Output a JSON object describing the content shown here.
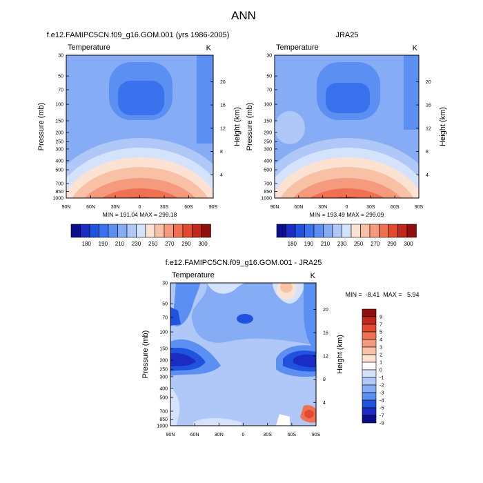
{
  "page_title": "ANN",
  "chart_data": [
    {
      "type": "heatmap",
      "title": "f.e12.FAMIPC5CN.f09_g16.GOM.001 (yrs 1986-2005)",
      "variable": "Temperature",
      "units": "K",
      "ylabel": "Pressure (mb)",
      "ylabel_right": "Height (km)",
      "x_ticks": [
        "90N",
        "60N",
        "30N",
        "0",
        "30S",
        "60S",
        "90S"
      ],
      "y_ticks": [
        "30",
        "50",
        "70",
        "100",
        "150",
        "200",
        "250",
        "300",
        "400",
        "500",
        "700",
        "850",
        "1000"
      ],
      "y_right_ticks": [
        "20",
        "16",
        "12",
        "8",
        "4"
      ],
      "stats": "MIN = 191.04  MAX = 299.18",
      "min": 191.04,
      "max": 299.18,
      "colorbar_labels": [
        "180",
        "190",
        "210",
        "230",
        "250",
        "270",
        "290",
        "300"
      ]
    },
    {
      "type": "heatmap",
      "title": "JRA25",
      "variable": "Temperature",
      "units": "K",
      "ylabel": "Pressure (mb)",
      "ylabel_right": "Height (km)",
      "x_ticks": [
        "90N",
        "60N",
        "30N",
        "0",
        "30S",
        "60S",
        "90S"
      ],
      "y_ticks": [
        "30",
        "50",
        "70",
        "100",
        "150",
        "200",
        "250",
        "300",
        "400",
        "500",
        "700",
        "850",
        "1000"
      ],
      "y_right_ticks": [
        "20",
        "16",
        "12",
        "8",
        "4"
      ],
      "stats": "MIN = 193.49  MAX = 299.09",
      "min": 193.49,
      "max": 299.09,
      "colorbar_labels": [
        "180",
        "190",
        "210",
        "230",
        "250",
        "270",
        "290",
        "300"
      ]
    },
    {
      "type": "heatmap",
      "title": "f.e12.FAMIPC5CN.f09_g16.GOM.001 - JRA25",
      "variable": "Temperature",
      "units": "K",
      "ylabel": "Pressure (mb)",
      "ylabel_right": "Height (km)",
      "x_ticks": [
        "90N",
        "60N",
        "30N",
        "0",
        "30S",
        "60S",
        "90S"
      ],
      "y_ticks": [
        "30",
        "50",
        "70",
        "100",
        "150",
        "200",
        "250",
        "300",
        "400",
        "500",
        "700",
        "850",
        "1000"
      ],
      "y_right_ticks": [
        "20",
        "16",
        "12",
        "8",
        "4"
      ],
      "stats": "MIN =  -8.41  MAX =   5.94",
      "min": -8.41,
      "max": 5.94,
      "colorbar_labels": [
        "9",
        "7",
        "5",
        "4",
        "3",
        "2",
        "1",
        "0",
        "-1",
        "-2",
        "-3",
        "-4",
        "-5",
        "-7",
        "-9"
      ]
    }
  ],
  "colors": {
    "abs_scale": [
      "#0b0e8a",
      "#1a2cc4",
      "#2052e0",
      "#3a72ee",
      "#5b8ff2",
      "#86acf5",
      "#b0c8f8",
      "#d4e3fb",
      "#fbe2d3",
      "#f8c0a4",
      "#f59a7c",
      "#ef7152",
      "#e14a2f",
      "#c1271a",
      "#8e0f0d"
    ],
    "diff_scale": [
      "#8e0f0d",
      "#c1271a",
      "#e14a2f",
      "#ef7152",
      "#f59a7c",
      "#f8c0a4",
      "#fbe2d3",
      "#ffffff",
      "#d4e3fb",
      "#b0c8f8",
      "#86acf5",
      "#5b8ff2",
      "#2052e0",
      "#1a2cc4",
      "#0b0e8a"
    ]
  }
}
